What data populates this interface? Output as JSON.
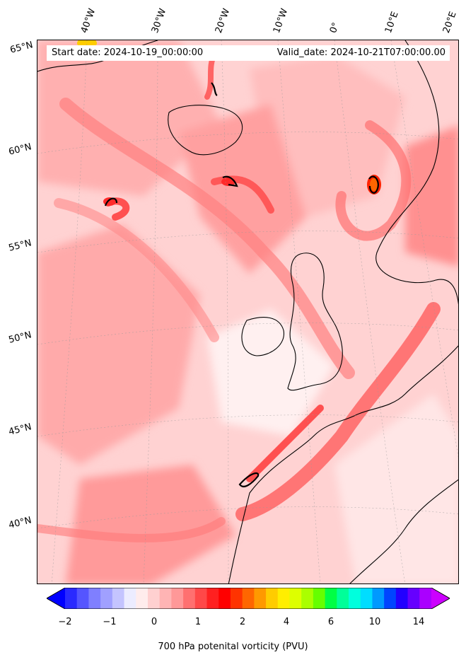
{
  "start_date": "Start date: 2024-10-19_00:00:00",
  "valid_date": "Valid_date: 2024-10-21T07:00:00.00",
  "longitude_labels": [
    "40°W",
    "30°W",
    "20°W",
    "10°W",
    "0°",
    "10°E",
    "20°E"
  ],
  "latitude_labels": [
    "65°N",
    "60°N",
    "55°N",
    "50°N",
    "45°N",
    "40°N"
  ],
  "colorbar": {
    "label": "700 hPa potenital vorticity (PVU)",
    "ticks": [
      "−2",
      "−1",
      "0",
      "1",
      "2",
      "4",
      "6",
      "10",
      "14"
    ],
    "colors": [
      "#0000ff",
      "#2a2aff",
      "#5555ff",
      "#7f7fff",
      "#a0a0ff",
      "#c4c4ff",
      "#ececff",
      "#ffecec",
      "#ffd0d0",
      "#ffb4b4",
      "#ff9898",
      "#ff7070",
      "#ff4848",
      "#ff2020",
      "#ff0000",
      "#ff3300",
      "#ff6600",
      "#ff9900",
      "#ffcc00",
      "#ffee00",
      "#ddff00",
      "#aaff00",
      "#66ff00",
      "#00ff44",
      "#00ff99",
      "#00ffdd",
      "#00ddff",
      "#0099ff",
      "#0044ff",
      "#2200ff",
      "#6600ff",
      "#aa00ff",
      "#cc00ff"
    ]
  }
}
